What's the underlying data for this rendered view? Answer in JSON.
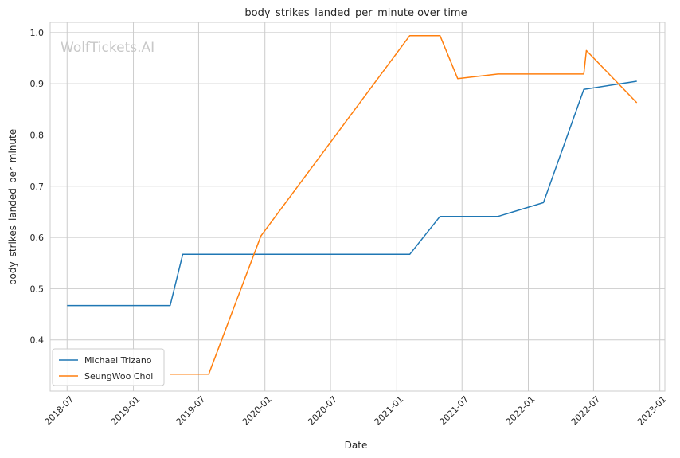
{
  "chart_data": {
    "type": "line",
    "title": "body_strikes_landed_per_minute over time",
    "xlabel": "Date",
    "ylabel": "body_strikes_landed_per_minute",
    "watermark": "WolfTickets.AI",
    "xlim": [
      "2018-05-15",
      "2023-01-15"
    ],
    "ylim": [
      0.3,
      1.02
    ],
    "x_ticks": [
      "2018-07",
      "2019-01",
      "2019-07",
      "2020-01",
      "2020-07",
      "2021-01",
      "2021-07",
      "2022-01",
      "2022-07",
      "2023-01"
    ],
    "y_ticks": [
      0.4,
      0.5,
      0.6,
      0.7,
      0.8,
      0.9,
      1.0
    ],
    "grid": true,
    "legend_position": "bottom-left",
    "colors": {
      "series1": "#1f77b4",
      "series2": "#ff7f0e",
      "grid": "#cccccc",
      "background": "#ffffff"
    },
    "series": [
      {
        "name": "Michael Trizano",
        "color": "#1f77b4",
        "points": [
          [
            "2018-07-01",
            0.467
          ],
          [
            "2019-04-13",
            0.467
          ],
          [
            "2019-05-18",
            0.567
          ],
          [
            "2021-02-06",
            0.567
          ],
          [
            "2021-05-01",
            0.641
          ],
          [
            "2021-10-09",
            0.641
          ],
          [
            "2022-02-12",
            0.668
          ],
          [
            "2022-06-04",
            0.889
          ],
          [
            "2022-10-29",
            0.905
          ]
        ]
      },
      {
        "name": "SeungWoo Choi",
        "color": "#ff7f0e",
        "points": [
          [
            "2019-04-13",
            0.333
          ],
          [
            "2019-07-29",
            0.333
          ],
          [
            "2019-12-21",
            0.603
          ],
          [
            "2021-02-06",
            0.994
          ],
          [
            "2021-05-01",
            0.994
          ],
          [
            "2021-06-19",
            0.91
          ],
          [
            "2021-10-09",
            0.919
          ],
          [
            "2022-06-04",
            0.919
          ],
          [
            "2022-06-11",
            0.965
          ],
          [
            "2022-10-29",
            0.863
          ]
        ]
      }
    ]
  }
}
